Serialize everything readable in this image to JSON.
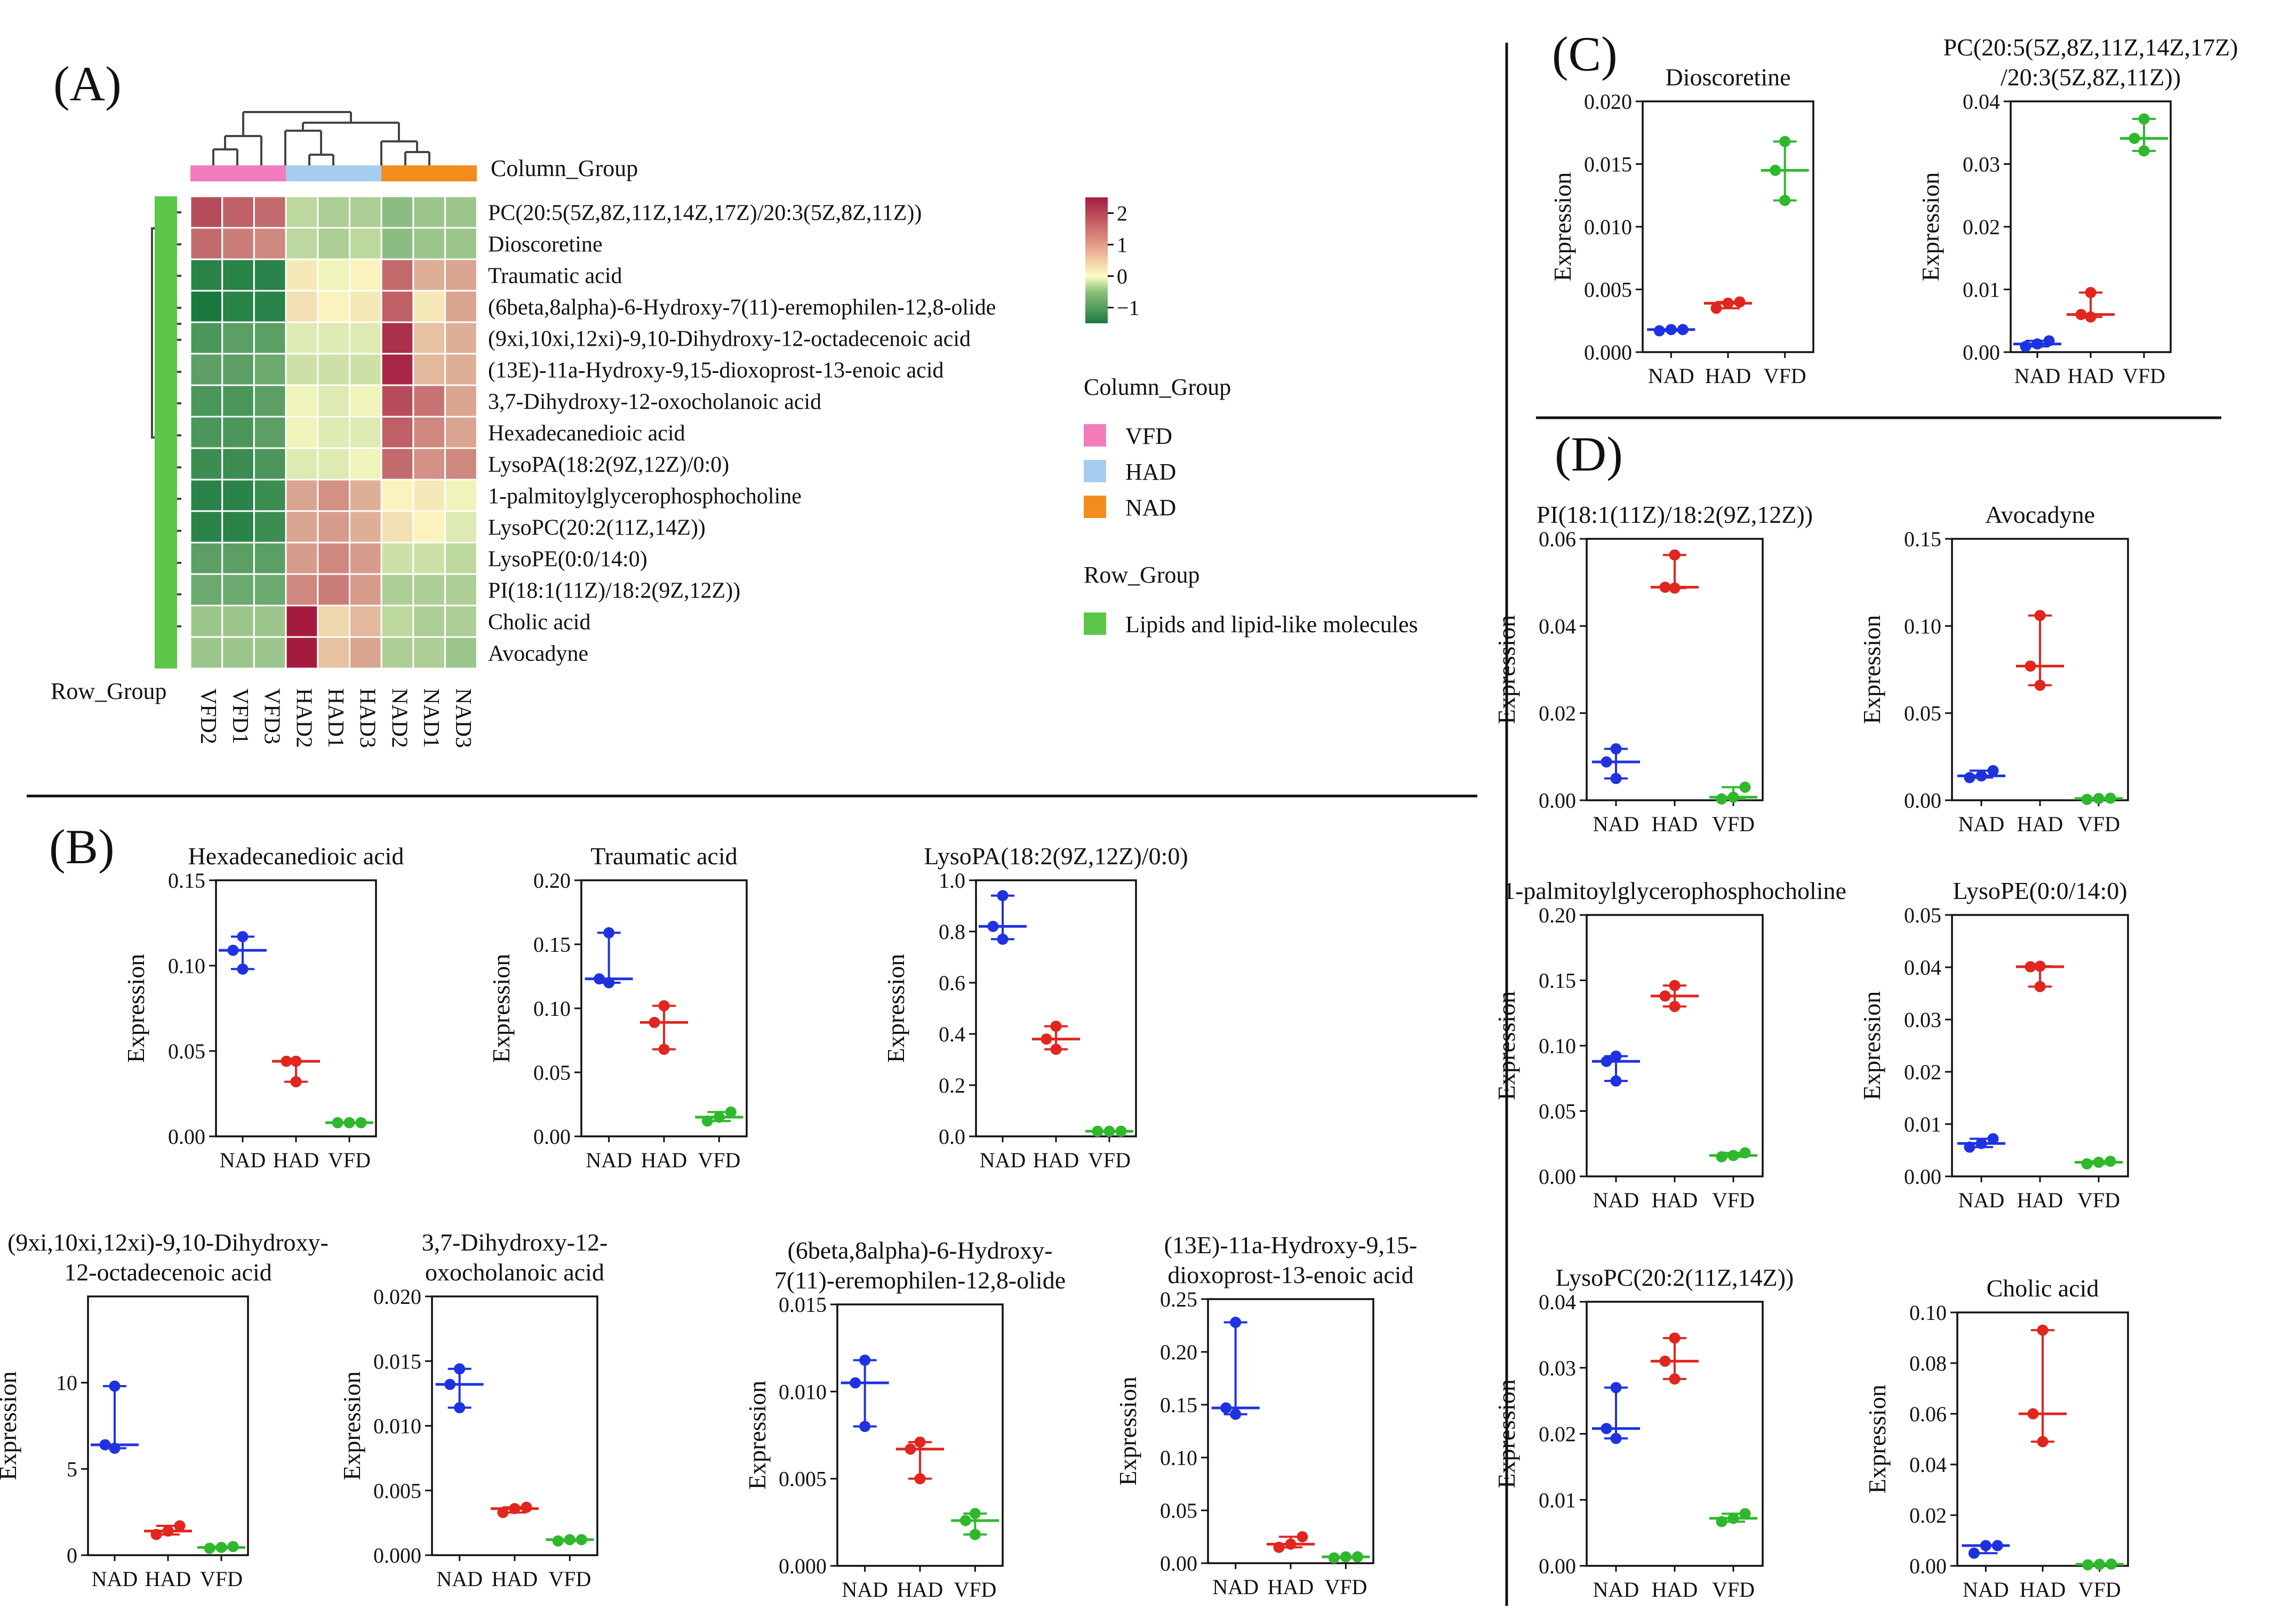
{
  "panels": {
    "A": "(A)",
    "B": "(B)",
    "C": "(C)",
    "D": "(D)"
  },
  "heatmap": {
    "column_group_title": "Column_Group",
    "row_group_title": "Row_Group",
    "columns": [
      "VFD2",
      "VFD1",
      "VFD3",
      "HAD2",
      "HAD1",
      "HAD3",
      "NAD2",
      "NAD1",
      "NAD3"
    ],
    "column_groups": [
      "VFD",
      "VFD",
      "VFD",
      "HAD",
      "HAD",
      "HAD",
      "NAD",
      "NAD",
      "NAD"
    ],
    "rows": [
      "PC(20:5(5Z,8Z,11Z,14Z,17Z)/20:3(5Z,8Z,11Z))",
      "Dioscoretine",
      "Traumatic acid",
      "(6beta,8alpha)-6-Hydroxy-7(11)-eremophilen-12,8-olide",
      "(9xi,10xi,12xi)-9,10-Dihydroxy-12-octadecenoic acid",
      "(13E)-11a-Hydroxy-9,15-dioxoprost-13-enoic acid",
      "3,7-Dihydroxy-12-oxocholanoic acid",
      "Hexadecanedioic acid",
      "LysoPA(18:2(9Z,12Z)/0:0)",
      "1-palmitoylglycerophosphocholine",
      "LysoPC(20:2(11Z,14Z))",
      "LysoPE(0:0/14:0)",
      "PI(18:1(11Z)/18:2(9Z,12Z))",
      "Cholic acid",
      "Avocadyne"
    ],
    "values": [
      [
        1.8,
        1.6,
        1.5,
        -0.4,
        -0.5,
        -0.5,
        -0.7,
        -0.6,
        -0.6
      ],
      [
        1.5,
        1.3,
        1.2,
        -0.4,
        -0.5,
        -0.4,
        -0.7,
        -0.6,
        -0.6
      ],
      [
        -1.3,
        -1.3,
        -1.3,
        0.2,
        -0.1,
        0.1,
        1.5,
        0.8,
        0.9
      ],
      [
        -1.4,
        -1.3,
        -1.3,
        0.3,
        0.1,
        0.2,
        1.6,
        0.2,
        0.9
      ],
      [
        -1.1,
        -1.0,
        -1.0,
        -0.2,
        -0.2,
        -0.2,
        2.1,
        0.6,
        0.8
      ],
      [
        -1.0,
        -1.0,
        -0.9,
        -0.3,
        -0.3,
        -0.3,
        2.2,
        0.7,
        0.8
      ],
      [
        -1.1,
        -1.1,
        -1.0,
        -0.1,
        -0.2,
        -0.1,
        1.8,
        1.4,
        0.9
      ],
      [
        -1.1,
        -1.1,
        -1.0,
        -0.1,
        -0.2,
        -0.2,
        1.6,
        1.2,
        0.9
      ],
      [
        -1.2,
        -1.2,
        -1.1,
        -0.2,
        -0.2,
        -0.1,
        1.5,
        1.1,
        1.2
      ],
      [
        -1.3,
        -1.3,
        -1.2,
        0.9,
        1.1,
        0.8,
        0.1,
        0.2,
        -0.1
      ],
      [
        -1.3,
        -1.3,
        -1.2,
        0.9,
        1.0,
        0.8,
        0.3,
        0.1,
        -0.2
      ],
      [
        -1.0,
        -1.0,
        -1.0,
        1.0,
        1.2,
        1.0,
        -0.3,
        -0.3,
        -0.4
      ],
      [
        -0.9,
        -0.9,
        -0.9,
        1.2,
        1.3,
        1.0,
        -0.5,
        -0.5,
        -0.5
      ],
      [
        -0.6,
        -0.6,
        -0.6,
        2.4,
        0.4,
        0.7,
        -0.4,
        -0.5,
        -0.5
      ],
      [
        -0.6,
        -0.6,
        -0.6,
        2.4,
        0.6,
        0.9,
        -0.5,
        -0.5,
        -0.6
      ]
    ],
    "colorbar": {
      "ticks": [
        "2",
        "1",
        "0",
        "−1"
      ],
      "tick_values": [
        2,
        1,
        0,
        -1
      ],
      "min": -1.5,
      "max": 2.5
    },
    "legend": {
      "column_group_title": "Column_Group",
      "items": [
        {
          "label": "VFD",
          "color": "#f27cbc"
        },
        {
          "label": "HAD",
          "color": "#a5cdf0"
        },
        {
          "label": "NAD",
          "color": "#f28c1d"
        }
      ],
      "row_group_title": "Row_Group",
      "row_items": [
        {
          "label": "Lipids and lipid-like molecules",
          "color": "#5cc648"
        }
      ]
    }
  },
  "chart_data": [
    {
      "type": "scatter",
      "panel": "B",
      "title": "Hexadecanedioic acid",
      "ylabel": "Expression",
      "categories": [
        "NAD",
        "HAD",
        "VFD"
      ],
      "ylim": [
        0,
        0.15
      ],
      "yticks": [
        0,
        0.05,
        0.1,
        0.15
      ],
      "yticklabels": [
        "0.00",
        "0.05",
        "0.10",
        "0.15"
      ],
      "series": [
        {
          "name": "NAD",
          "values": [
            0.098,
            0.109,
            0.117
          ],
          "median": 0.109
        },
        {
          "name": "HAD",
          "values": [
            0.032,
            0.044,
            0.044
          ],
          "median": 0.044
        },
        {
          "name": "VFD",
          "values": [
            0.008,
            0.008,
            0.008
          ],
          "median": 0.008
        }
      ]
    },
    {
      "type": "scatter",
      "panel": "B",
      "title": "Traumatic acid",
      "ylabel": "Expression",
      "categories": [
        "NAD",
        "HAD",
        "VFD"
      ],
      "ylim": [
        0,
        0.2
      ],
      "yticks": [
        0,
        0.05,
        0.1,
        0.15,
        0.2
      ],
      "yticklabels": [
        "0.00",
        "0.05",
        "0.10",
        "0.15",
        "0.20"
      ],
      "series": [
        {
          "name": "NAD",
          "values": [
            0.12,
            0.123,
            0.159
          ],
          "median": 0.123
        },
        {
          "name": "HAD",
          "values": [
            0.068,
            0.089,
            0.102
          ],
          "median": 0.089
        },
        {
          "name": "VFD",
          "values": [
            0.012,
            0.015,
            0.019
          ],
          "median": 0.015
        }
      ]
    },
    {
      "type": "scatter",
      "panel": "B",
      "title": "LysoPA(18:2(9Z,12Z)/0:0)",
      "ylabel": "Expression",
      "categories": [
        "NAD",
        "HAD",
        "VFD"
      ],
      "ylim": [
        0,
        1.0
      ],
      "yticks": [
        0,
        0.2,
        0.4,
        0.6,
        0.8,
        1.0
      ],
      "yticklabels": [
        "0.0",
        "0.2",
        "0.4",
        "0.6",
        "0.8",
        "1.0"
      ],
      "series": [
        {
          "name": "NAD",
          "values": [
            0.77,
            0.82,
            0.94
          ],
          "median": 0.82
        },
        {
          "name": "HAD",
          "values": [
            0.34,
            0.38,
            0.43
          ],
          "median": 0.38
        },
        {
          "name": "VFD",
          "values": [
            0.02,
            0.02,
            0.02
          ],
          "median": 0.02
        }
      ]
    },
    {
      "type": "scatter",
      "panel": "B",
      "title": "(9xi,10xi,12xi)-9,10-Dihydroxy-12-octadecenoic acid",
      "title_lines": [
        "(9xi,10xi,12xi)-9,10-Dihydroxy-",
        "12-octadecenoic acid"
      ],
      "ylabel": "Expression",
      "categories": [
        "NAD",
        "HAD",
        "VFD"
      ],
      "ylim": [
        0,
        15
      ],
      "yticks": [
        0,
        5,
        10
      ],
      "yticklabels": [
        "0",
        "5",
        "10"
      ],
      "series": [
        {
          "name": "NAD",
          "values": [
            6.2,
            6.4,
            9.8
          ],
          "median": 6.4
        },
        {
          "name": "HAD",
          "values": [
            1.2,
            1.4,
            1.7
          ],
          "median": 1.4
        },
        {
          "name": "VFD",
          "values": [
            0.4,
            0.45,
            0.5
          ],
          "median": 0.45
        }
      ]
    },
    {
      "type": "scatter",
      "panel": "B",
      "title": "3,7-Dihydroxy-12-oxocholanoic acid",
      "title_lines": [
        "3,7-Dihydroxy-12-",
        "oxocholanoic acid"
      ],
      "ylabel": "Expression",
      "categories": [
        "NAD",
        "HAD",
        "VFD"
      ],
      "ylim": [
        0,
        0.02
      ],
      "yticks": [
        0,
        0.005,
        0.01,
        0.015,
        0.02
      ],
      "yticklabels": [
        "0.000",
        "0.005",
        "0.010",
        "0.015",
        "0.020"
      ],
      "series": [
        {
          "name": "NAD",
          "values": [
            0.0114,
            0.0132,
            0.0144
          ],
          "median": 0.0132
        },
        {
          "name": "HAD",
          "values": [
            0.0033,
            0.0036,
            0.0037
          ],
          "median": 0.0036
        },
        {
          "name": "VFD",
          "values": [
            0.0011,
            0.0012,
            0.0012
          ],
          "median": 0.0012
        }
      ]
    },
    {
      "type": "scatter",
      "panel": "B",
      "title": "(6beta,8alpha)-6-Hydroxy-7(11)-eremophilen-12,8-olide",
      "title_lines": [
        "(6beta,8alpha)-6-Hydroxy-",
        "7(11)-eremophilen-12,8-olide"
      ],
      "ylabel": "Expression",
      "categories": [
        "NAD",
        "HAD",
        "VFD"
      ],
      "ylim": [
        0,
        0.015
      ],
      "yticks": [
        0,
        0.005,
        0.01,
        0.015
      ],
      "yticklabels": [
        "0.000",
        "0.005",
        "0.010",
        "0.015"
      ],
      "series": [
        {
          "name": "NAD",
          "values": [
            0.008,
            0.0105,
            0.0118
          ],
          "median": 0.0105
        },
        {
          "name": "HAD",
          "values": [
            0.005,
            0.0067,
            0.0071
          ],
          "median": 0.0067
        },
        {
          "name": "VFD",
          "values": [
            0.0018,
            0.0026,
            0.003
          ],
          "median": 0.0026
        }
      ]
    },
    {
      "type": "scatter",
      "panel": "B",
      "title": "(13E)-11a-Hydroxy-9,15-dioxoprost-13-enoic acid",
      "title_lines": [
        "(13E)-11a-Hydroxy-9,15-",
        "dioxoprost-13-enoic acid"
      ],
      "ylabel": "Expression",
      "categories": [
        "NAD",
        "HAD",
        "VFD"
      ],
      "ylim": [
        0,
        0.25
      ],
      "yticks": [
        0,
        0.05,
        0.1,
        0.15,
        0.2,
        0.25
      ],
      "yticklabels": [
        "0.00",
        "0.05",
        "0.10",
        "0.15",
        "0.20",
        "0.25"
      ],
      "series": [
        {
          "name": "NAD",
          "values": [
            0.141,
            0.147,
            0.228
          ],
          "median": 0.147
        },
        {
          "name": "HAD",
          "values": [
            0.015,
            0.018,
            0.025
          ],
          "median": 0.018
        },
        {
          "name": "VFD",
          "values": [
            0.005,
            0.006,
            0.006
          ],
          "median": 0.006
        }
      ]
    },
    {
      "type": "scatter",
      "panel": "C",
      "title": "Dioscoretine",
      "ylabel": "Expression",
      "categories": [
        "NAD",
        "HAD",
        "VFD"
      ],
      "ylim": [
        0,
        0.02
      ],
      "yticks": [
        0,
        0.005,
        0.01,
        0.015,
        0.02
      ],
      "yticklabels": [
        "0.000",
        "0.005",
        "0.010",
        "0.015",
        "0.020"
      ],
      "series": [
        {
          "name": "NAD",
          "values": [
            0.0017,
            0.0018,
            0.0018
          ],
          "median": 0.0018
        },
        {
          "name": "HAD",
          "values": [
            0.0035,
            0.0039,
            0.004
          ],
          "median": 0.0039
        },
        {
          "name": "VFD",
          "values": [
            0.0121,
            0.0145,
            0.0168
          ],
          "median": 0.0145
        }
      ]
    },
    {
      "type": "scatter",
      "panel": "C",
      "title": "PC(20:5(5Z,8Z,11Z,14Z,17Z)/20:3(5Z,8Z,11Z))",
      "title_lines": [
        "PC(20:5(5Z,8Z,11Z,14Z,17Z)",
        "/20:3(5Z,8Z,11Z))"
      ],
      "ylabel": "Expression",
      "categories": [
        "NAD",
        "HAD",
        "VFD"
      ],
      "ylim": [
        0,
        0.04
      ],
      "yticks": [
        0,
        0.01,
        0.02,
        0.03,
        0.04
      ],
      "yticklabels": [
        "0.00",
        "0.01",
        "0.02",
        "0.03",
        "0.04"
      ],
      "series": [
        {
          "name": "NAD",
          "values": [
            0.0009,
            0.0013,
            0.0018
          ],
          "median": 0.0013
        },
        {
          "name": "HAD",
          "values": [
            0.0056,
            0.006,
            0.0095
          ],
          "median": 0.006
        },
        {
          "name": "VFD",
          "values": [
            0.0321,
            0.0341,
            0.0372
          ],
          "median": 0.0341
        }
      ]
    },
    {
      "type": "scatter",
      "panel": "D",
      "title": "PI(18:1(11Z)/18:2(9Z,12Z))",
      "ylabel": "Expression",
      "categories": [
        "NAD",
        "HAD",
        "VFD"
      ],
      "ylim": [
        0,
        0.06
      ],
      "yticks": [
        0,
        0.02,
        0.04,
        0.06
      ],
      "yticklabels": [
        "0.00",
        "0.02",
        "0.04",
        "0.06"
      ],
      "series": [
        {
          "name": "NAD",
          "values": [
            0.005,
            0.0088,
            0.0118
          ],
          "median": 0.0088
        },
        {
          "name": "HAD",
          "values": [
            0.0487,
            0.0489,
            0.0563
          ],
          "median": 0.0489
        },
        {
          "name": "VFD",
          "values": [
            0.0003,
            0.0007,
            0.003
          ],
          "median": 0.0007
        }
      ]
    },
    {
      "type": "scatter",
      "panel": "D",
      "title": "Avocadyne",
      "ylabel": "Expression",
      "categories": [
        "NAD",
        "HAD",
        "VFD"
      ],
      "ylim": [
        0,
        0.15
      ],
      "yticks": [
        0,
        0.05,
        0.1,
        0.15
      ],
      "yticklabels": [
        "0.00",
        "0.05",
        "0.10",
        "0.15"
      ],
      "series": [
        {
          "name": "NAD",
          "values": [
            0.013,
            0.014,
            0.017
          ],
          "median": 0.014
        },
        {
          "name": "HAD",
          "values": [
            0.066,
            0.077,
            0.106
          ],
          "median": 0.077
        },
        {
          "name": "VFD",
          "values": [
            0.0005,
            0.001,
            0.0012
          ],
          "median": 0.001
        }
      ]
    },
    {
      "type": "scatter",
      "panel": "D",
      "title": "1-palmitoylglycerophosphocholine",
      "ylabel": "Expression",
      "categories": [
        "NAD",
        "HAD",
        "VFD"
      ],
      "ylim": [
        0,
        0.2
      ],
      "yticks": [
        0,
        0.05,
        0.1,
        0.15,
        0.2
      ],
      "yticklabels": [
        "0.00",
        "0.05",
        "0.10",
        "0.15",
        "0.20"
      ],
      "series": [
        {
          "name": "NAD",
          "values": [
            0.073,
            0.088,
            0.092
          ],
          "median": 0.088
        },
        {
          "name": "HAD",
          "values": [
            0.13,
            0.138,
            0.146
          ],
          "median": 0.138
        },
        {
          "name": "VFD",
          "values": [
            0.015,
            0.016,
            0.018
          ],
          "median": 0.016
        }
      ]
    },
    {
      "type": "scatter",
      "panel": "D",
      "title": "LysoPE(0:0/14:0)",
      "ylabel": "Expression",
      "categories": [
        "NAD",
        "HAD",
        "VFD"
      ],
      "ylim": [
        0,
        0.05
      ],
      "yticks": [
        0,
        0.01,
        0.02,
        0.03,
        0.04,
        0.05
      ],
      "yticklabels": [
        "0.00",
        "0.01",
        "0.02",
        "0.03",
        "0.04",
        "0.05"
      ],
      "series": [
        {
          "name": "NAD",
          "values": [
            0.0056,
            0.0063,
            0.0072
          ],
          "median": 0.0063
        },
        {
          "name": "HAD",
          "values": [
            0.0363,
            0.0401,
            0.0402
          ],
          "median": 0.0401
        },
        {
          "name": "VFD",
          "values": [
            0.0024,
            0.0027,
            0.0029
          ],
          "median": 0.0027
        }
      ]
    },
    {
      "type": "scatter",
      "panel": "D",
      "title": "LysoPC(20:2(11Z,14Z))",
      "ylabel": "Expression",
      "categories": [
        "NAD",
        "HAD",
        "VFD"
      ],
      "ylim": [
        0,
        0.04
      ],
      "yticks": [
        0,
        0.01,
        0.02,
        0.03,
        0.04
      ],
      "yticklabels": [
        "0.00",
        "0.01",
        "0.02",
        "0.03",
        "0.04"
      ],
      "series": [
        {
          "name": "NAD",
          "values": [
            0.0193,
            0.0208,
            0.027
          ],
          "median": 0.0208
        },
        {
          "name": "HAD",
          "values": [
            0.0283,
            0.031,
            0.0345
          ],
          "median": 0.031
        },
        {
          "name": "VFD",
          "values": [
            0.0067,
            0.0072,
            0.0079
          ],
          "median": 0.0072
        }
      ]
    },
    {
      "type": "scatter",
      "panel": "D",
      "title": "Cholic acid",
      "ylabel": "Expression",
      "categories": [
        "NAD",
        "HAD",
        "VFD"
      ],
      "ylim": [
        0,
        0.1
      ],
      "yticks": [
        0,
        0.02,
        0.04,
        0.06,
        0.08,
        0.1
      ],
      "yticklabels": [
        "0.00",
        "0.02",
        "0.04",
        "0.06",
        "0.08",
        "0.10"
      ],
      "series": [
        {
          "name": "NAD",
          "values": [
            0.005,
            0.008,
            0.008
          ],
          "median": 0.008
        },
        {
          "name": "HAD",
          "values": [
            0.049,
            0.06,
            0.093
          ],
          "median": 0.06
        },
        {
          "name": "VFD",
          "values": [
            0.0004,
            0.0006,
            0.0007
          ],
          "median": 0.0006
        }
      ]
    }
  ],
  "colors": {
    "NAD": "#1f32e0",
    "HAD": "#e0261e",
    "VFD": "#2fb82c",
    "high": "#a31c3f",
    "mid": "#fefdc4",
    "low": "#1a7a3e"
  }
}
